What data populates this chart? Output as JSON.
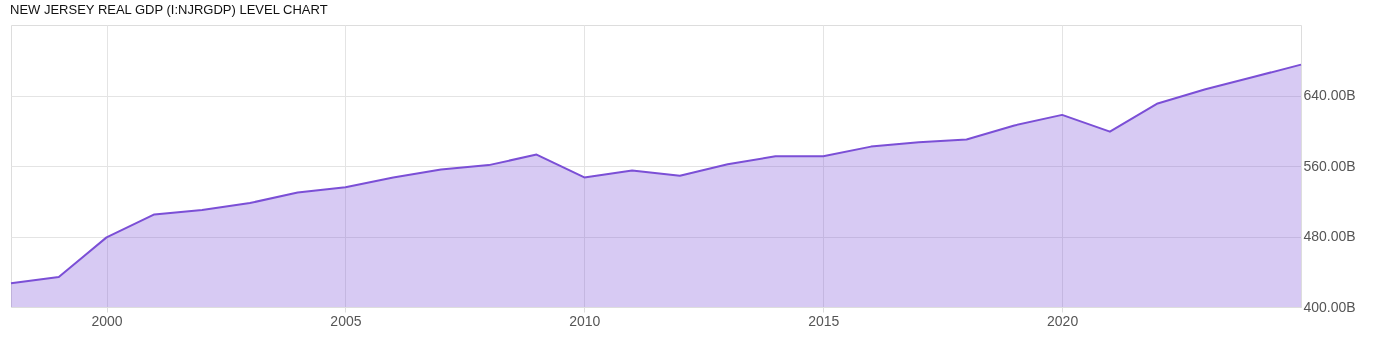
{
  "chart_data": {
    "type": "area",
    "title": "NEW JERSEY REAL GDP (I:NJRGDP) LEVEL CHART",
    "x": [
      1998,
      1999,
      2000,
      2001,
      2002,
      2003,
      2004,
      2005,
      2006,
      2007,
      2008,
      2009,
      2010,
      2011,
      2012,
      2013,
      2014,
      2015,
      2016,
      2017,
      2018,
      2019,
      2020,
      2021,
      2022,
      2023,
      2024,
      2025
    ],
    "series": [
      {
        "color": "#7b4fd6",
        "values": [
          427,
          434,
          479,
          505,
          510,
          518,
          530,
          536,
          547,
          556,
          561,
          573,
          547,
          555,
          549,
          562,
          571,
          571,
          582,
          587,
          590,
          606,
          618,
          599,
          631,
          647,
          661,
          675
        ]
      }
    ],
    "xlim": [
      1998,
      2025
    ],
    "xticks": [
      2000,
      2005,
      2010,
      2015,
      2020
    ],
    "ylim": [
      400,
      720
    ],
    "yticks": [
      {
        "value": 400,
        "label": "400.00B"
      },
      {
        "value": 480,
        "label": "480.00B"
      },
      {
        "value": 560,
        "label": "560.00B"
      },
      {
        "value": 640,
        "label": "640.00B"
      }
    ],
    "grid": true
  }
}
